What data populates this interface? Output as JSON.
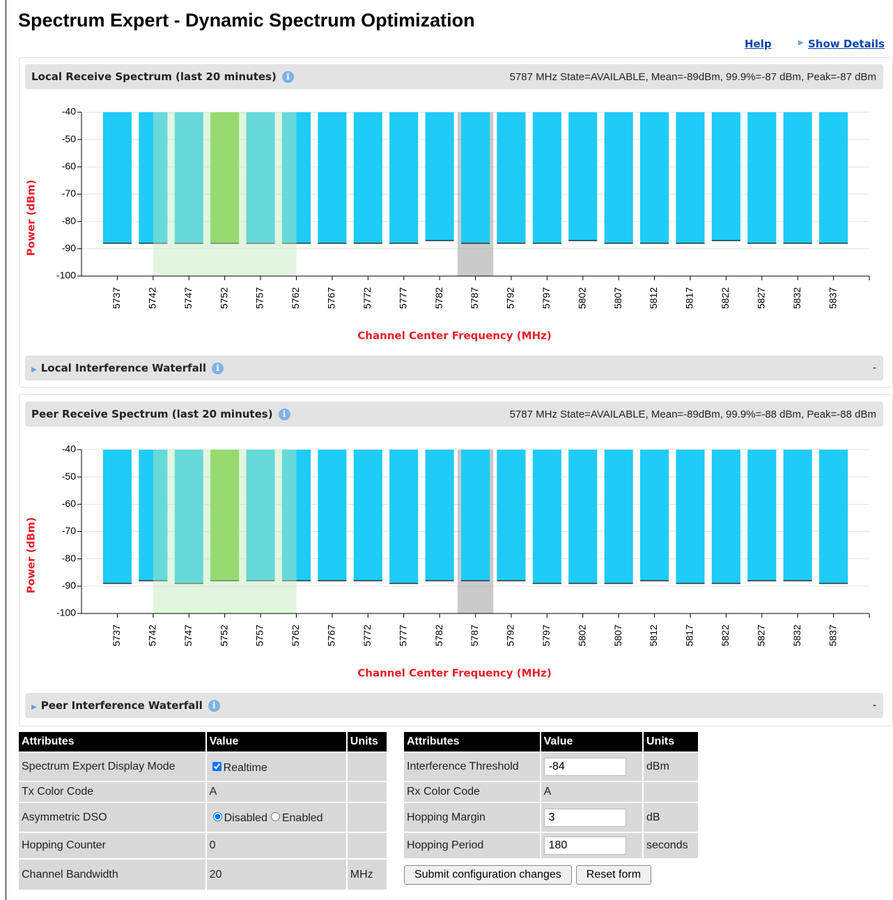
{
  "header": {
    "title": "Spectrum Expert - Dynamic Spectrum Optimization",
    "links": [
      "Help",
      "Show Details"
    ]
  },
  "panels": [
    {
      "title": "Local Receive Spectrum (last 20 minutes)",
      "status": "5787 MHz State=AVAILABLE, Mean=-89dBm, 99.9%=-87 dBm, Peak=-87 dBm",
      "waterfall": "Local Interference Waterfall",
      "waterfall_value": "-"
    },
    {
      "title": "Peer Receive Spectrum (last 20 minutes)",
      "status": "5787 MHz State=AVAILABLE, Mean=-89dBm, 99.9%=-88 dBm, Peak=-88 dBm",
      "waterfall": "Peer Interference Waterfall",
      "waterfall_value": "-"
    }
  ],
  "chart_data": [
    {
      "type": "bar",
      "x_label": "Channel Center Frequency (MHz)",
      "y_label": "Power (dBm)",
      "x": [
        5737,
        5742,
        5747,
        5752,
        5757,
        5762,
        5767,
        5772,
        5777,
        5782,
        5787,
        5792,
        5797,
        5802,
        5807,
        5812,
        5817,
        5822,
        5827,
        5832,
        5837
      ],
      "values": [
        -88,
        -88,
        -88,
        -88,
        -88,
        -88,
        -88,
        -88,
        -88,
        -87,
        -88,
        -88,
        -88,
        -87,
        -88,
        -88,
        -88,
        -87,
        -88,
        -88,
        -88
      ],
      "color": "#1fcbf7",
      "active_x": 5752,
      "active_color": "#77cc33",
      "bands": [
        {
          "from": 5784.5,
          "to": 5789.5,
          "color": "rgba(150,150,150,0.5)",
          "over_bars": false
        },
        {
          "from": 5742,
          "to": 5762,
          "color": "rgba(190,235,185,0.45)",
          "over_bars": true
        }
      ],
      "xlim": [
        5732,
        5842
      ],
      "xticks": [
        5737,
        5742,
        5747,
        5752,
        5757,
        5762,
        5767,
        5772,
        5777,
        5782,
        5787,
        5792,
        5797,
        5802,
        5807,
        5812,
        5817,
        5822,
        5827,
        5832,
        5837
      ],
      "ylim": [
        -100,
        -40
      ],
      "yticks": [
        -40,
        -50,
        -60,
        -70,
        -80,
        -90,
        -100
      ],
      "grid": true
    },
    {
      "type": "bar",
      "x_label": "Channel Center Frequency (MHz)",
      "y_label": "Power (dBm)",
      "x": [
        5737,
        5742,
        5747,
        5752,
        5757,
        5762,
        5767,
        5772,
        5777,
        5782,
        5787,
        5792,
        5797,
        5802,
        5807,
        5812,
        5817,
        5822,
        5827,
        5832,
        5837
      ],
      "values": [
        -89,
        -88,
        -89,
        -88,
        -88,
        -88,
        -88,
        -88,
        -89,
        -88,
        -88,
        -88,
        -89,
        -89,
        -89,
        -88,
        -89,
        -89,
        -88,
        -88,
        -89
      ],
      "color": "#1fcbf7",
      "active_x": 5752,
      "active_color": "#77cc33",
      "bands": [
        {
          "from": 5784.5,
          "to": 5789.5,
          "color": "rgba(150,150,150,0.5)",
          "over_bars": false
        },
        {
          "from": 5742,
          "to": 5762,
          "color": "rgba(190,235,185,0.45)",
          "over_bars": true
        }
      ],
      "xlim": [
        5732,
        5842
      ],
      "xticks": [
        5737,
        5742,
        5747,
        5752,
        5757,
        5762,
        5767,
        5772,
        5777,
        5782,
        5787,
        5792,
        5797,
        5802,
        5807,
        5812,
        5817,
        5822,
        5827,
        5832,
        5837
      ],
      "ylim": [
        -100,
        -40
      ],
      "yticks": [
        -40,
        -50,
        -60,
        -70,
        -80,
        -90,
        -100
      ],
      "grid": true
    }
  ],
  "tables": [
    {
      "columns": [
        "Attributes",
        "Value",
        "Units"
      ],
      "rows": [
        {
          "attribute": "Spectrum Expert Display Mode",
          "checkbox": "Realtime",
          "checked": true
        },
        {
          "attribute": "Tx Color Code",
          "value": "A"
        },
        {
          "attribute": "Asymmetric DSO",
          "options": [
            "Disabled",
            "Enabled"
          ],
          "selected": 0
        },
        {
          "attribute": "Hopping Counter",
          "value": "0"
        },
        {
          "attribute": "Channel Bandwidth",
          "value": "20",
          "units": "MHz"
        }
      ]
    },
    {
      "columns": [
        "Attributes",
        "Value",
        "Units"
      ],
      "rows": [
        {
          "attribute": "Interference Threshold",
          "input": "-84",
          "units": "dBm"
        },
        {
          "attribute": "Rx Color Code",
          "value": "A"
        },
        {
          "attribute": "Hopping Margin",
          "input": "3",
          "units": "dB"
        },
        {
          "attribute": "Hopping Period",
          "input": "180",
          "units": "seconds"
        }
      ],
      "buttons": [
        "Submit configuration changes",
        "Reset form"
      ]
    }
  ]
}
